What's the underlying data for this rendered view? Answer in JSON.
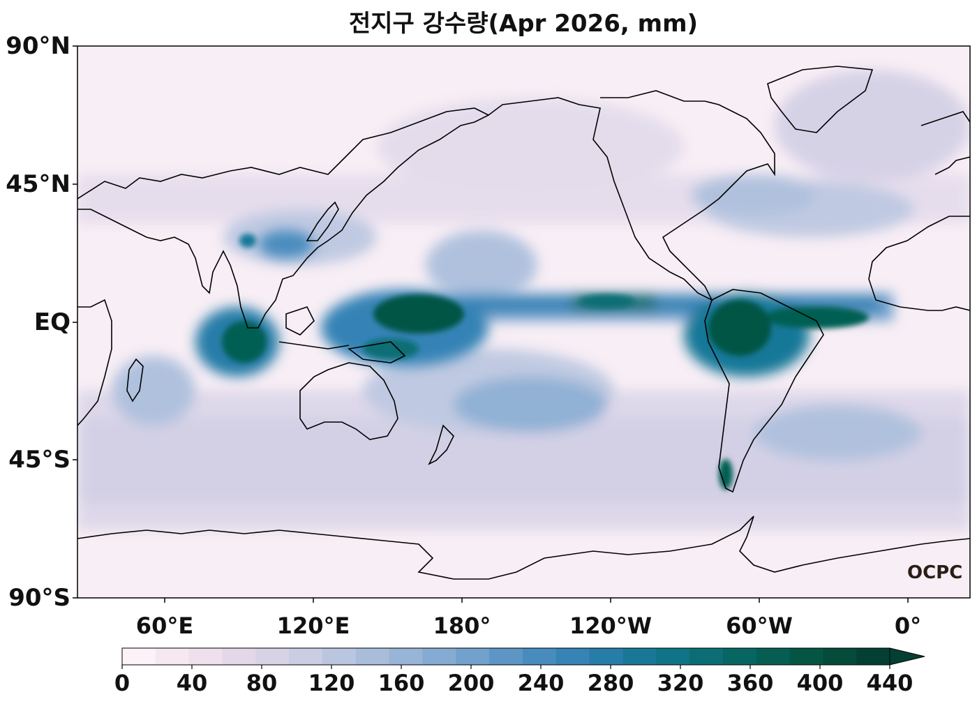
{
  "title": "전지구 강수량(Apr 2026, mm)",
  "lat_labels": [
    "90°N",
    "45°N",
    "EQ",
    "45°S",
    "90°S"
  ],
  "lon_labels": [
    "60°E",
    "120°E",
    "180°",
    "120°W",
    "60°W",
    "0°"
  ],
  "colorbar": {
    "ticks": [
      "0",
      "40",
      "80",
      "120",
      "160",
      "200",
      "240",
      "280",
      "320",
      "360",
      "400",
      "440"
    ],
    "extend": "max",
    "colors": [
      "#fcf2f7",
      "#f6e8f1",
      "#eee0ec",
      "#e4d8e8",
      "#d8d2e5",
      "#cacde3",
      "#bac6e0",
      "#a9bddb",
      "#98b4d6",
      "#86abd2",
      "#72a1cc",
      "#5d96c5",
      "#488cbe",
      "#3683b6",
      "#267da8",
      "#197898",
      "#0f7486",
      "#0a6e74",
      "#076662",
      "#065e52",
      "#055545",
      "#044b3a",
      "#034033"
    ]
  },
  "watermark": "OCPC"
}
